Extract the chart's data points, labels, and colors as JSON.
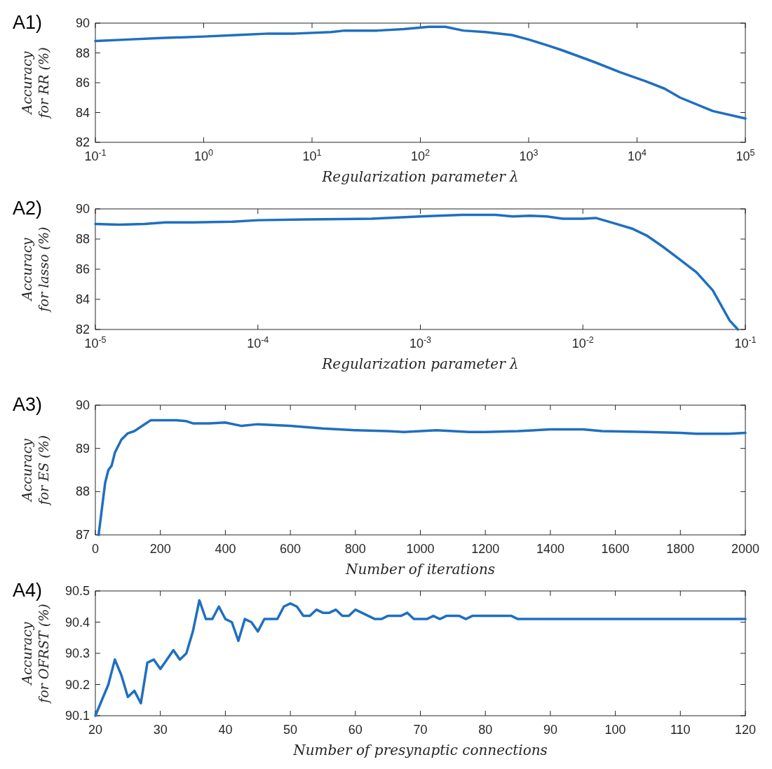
{
  "chart_data": [
    {
      "type": "line",
      "title": "A1)",
      "xlabel": "Regularization parameter λ",
      "ylabel": "Accuracy\nfor RR (%)",
      "log": "x",
      "xlim": [
        0.1,
        100000
      ],
      "xticks": [
        {
          "value": 0.1,
          "label": "10$^{-1}$"
        },
        {
          "value": 1,
          "label": "10$^{0}$"
        },
        {
          "value": 10,
          "label": "10$^{1}$"
        },
        {
          "value": 100,
          "label": "10$^{2}$"
        },
        {
          "value": 1000,
          "label": "10$^{3}$"
        },
        {
          "value": 10000,
          "label": "10$^{4}$"
        },
        {
          "value": 100000,
          "label": "10$^{5}$"
        }
      ],
      "ylim": [
        82,
        90
      ],
      "yticks": [
        82,
        84,
        86,
        88,
        90
      ],
      "x": [
        0.1,
        0.2,
        0.4,
        1,
        2,
        4,
        7,
        15,
        20,
        40,
        70,
        120,
        170,
        250,
        400,
        700,
        1000,
        1500,
        2000,
        4000,
        7000,
        12000,
        18000,
        25000,
        50000,
        100000
      ],
      "series": [
        {
          "color": "#1f6fc0",
          "values": [
            88.8,
            88.9,
            89.0,
            89.1,
            89.2,
            89.3,
            89.3,
            89.4,
            89.5,
            89.5,
            89.6,
            89.75,
            89.75,
            89.5,
            89.4,
            89.2,
            88.9,
            88.5,
            88.2,
            87.4,
            86.7,
            86.1,
            85.6,
            85.0,
            84.1,
            83.6
          ]
        }
      ]
    },
    {
      "type": "line",
      "title": "A2)",
      "xlabel": "Regularization parameter λ",
      "ylabel": "Accuracy\nfor lasso (%)",
      "log": "x",
      "xlim": [
        1e-05,
        0.1
      ],
      "xticks": [
        {
          "value": 1e-05,
          "label": "10$^{-5}$"
        },
        {
          "value": 0.0001,
          "label": "10$^{-4}$"
        },
        {
          "value": 0.001,
          "label": "10$^{-3}$"
        },
        {
          "value": 0.01,
          "label": "10$^{-2}$"
        },
        {
          "value": 0.1,
          "label": "10$^{-1}$"
        }
      ],
      "ylim": [
        82,
        90
      ],
      "yticks": [
        82,
        84,
        86,
        88,
        90
      ],
      "x": [
        1e-05,
        1.4e-05,
        2e-05,
        2.7e-05,
        4e-05,
        7e-05,
        0.0001,
        0.0002,
        0.0005,
        0.001,
        0.0018,
        0.0029,
        0.0037,
        0.0047,
        0.006,
        0.0075,
        0.01,
        0.012,
        0.015,
        0.02,
        0.025,
        0.031,
        0.04,
        0.05,
        0.063,
        0.08,
        0.09
      ],
      "series": [
        {
          "color": "#1f6fc0",
          "values": [
            89.0,
            88.95,
            89.0,
            89.1,
            89.1,
            89.15,
            89.25,
            89.3,
            89.35,
            89.5,
            89.6,
            89.6,
            89.5,
            89.55,
            89.5,
            89.35,
            89.35,
            89.4,
            89.1,
            88.7,
            88.2,
            87.5,
            86.6,
            85.8,
            84.6,
            82.6,
            82.0
          ]
        }
      ]
    },
    {
      "type": "line",
      "title": "A3)",
      "xlabel": "Number of iterations",
      "ylabel": "Accuracy\nfor ES (%)",
      "xlim": [
        0,
        2000
      ],
      "xticks": [
        0,
        200,
        400,
        600,
        800,
        1000,
        1200,
        1400,
        1600,
        1800,
        2000
      ],
      "ylim": [
        87,
        90
      ],
      "yticks": [
        87,
        88,
        89,
        90
      ],
      "x": [
        10,
        20,
        30,
        40,
        50,
        60,
        80,
        100,
        120,
        150,
        170,
        200,
        250,
        280,
        300,
        350,
        400,
        450,
        500,
        600,
        700,
        800,
        900,
        950,
        1000,
        1050,
        1150,
        1200,
        1300,
        1400,
        1500,
        1560,
        1700,
        1800,
        1850,
        1950,
        2000
      ],
      "series": [
        {
          "color": "#1f6fc0",
          "values": [
            87.0,
            87.6,
            88.2,
            88.5,
            88.6,
            88.9,
            89.2,
            89.35,
            89.4,
            89.55,
            89.65,
            89.65,
            89.65,
            89.63,
            89.58,
            89.58,
            89.6,
            89.52,
            89.56,
            89.52,
            89.46,
            89.42,
            89.4,
            89.38,
            89.4,
            89.42,
            89.38,
            89.38,
            89.4,
            89.44,
            89.44,
            89.4,
            89.38,
            89.36,
            89.34,
            89.34,
            89.36
          ]
        }
      ]
    },
    {
      "type": "line",
      "title": "A4)",
      "xlabel": "Number of presynaptic connections",
      "ylabel": "Accuracy\nfor OFRST (%)",
      "xlim": [
        20,
        120
      ],
      "xticks": [
        20,
        30,
        40,
        50,
        60,
        70,
        80,
        90,
        100,
        110,
        120
      ],
      "ylim": [
        90.1,
        90.5
      ],
      "yticks": [
        90.1,
        90.2,
        90.3,
        90.4,
        90.5
      ],
      "x": [
        20,
        21,
        22,
        23,
        24,
        25,
        26,
        27,
        28,
        29,
        30,
        31,
        32,
        33,
        34,
        35,
        36,
        37,
        38,
        39,
        40,
        41,
        42,
        43,
        44,
        45,
        46,
        47,
        48,
        49,
        50,
        51,
        52,
        53,
        54,
        55,
        56,
        57,
        58,
        59,
        60,
        61,
        62,
        63,
        64,
        65,
        66,
        67,
        68,
        69,
        70,
        71,
        72,
        73,
        74,
        75,
        76,
        77,
        78,
        84,
        85,
        120
      ],
      "series": [
        {
          "color": "#1f6fc0",
          "values": [
            90.1,
            90.15,
            90.2,
            90.28,
            90.23,
            90.16,
            90.18,
            90.14,
            90.27,
            90.28,
            90.25,
            90.28,
            90.31,
            90.28,
            90.3,
            90.37,
            90.47,
            90.41,
            90.41,
            90.45,
            90.41,
            90.4,
            90.34,
            90.41,
            90.4,
            90.37,
            90.41,
            90.41,
            90.41,
            90.45,
            90.46,
            90.45,
            90.42,
            90.42,
            90.44,
            90.43,
            90.43,
            90.44,
            90.42,
            90.42,
            90.44,
            90.43,
            90.42,
            90.41,
            90.41,
            90.42,
            90.42,
            90.42,
            90.43,
            90.41,
            90.41,
            90.41,
            90.42,
            90.41,
            90.42,
            90.42,
            90.42,
            90.41,
            90.42,
            90.42,
            90.41,
            90.41
          ]
        }
      ]
    }
  ]
}
